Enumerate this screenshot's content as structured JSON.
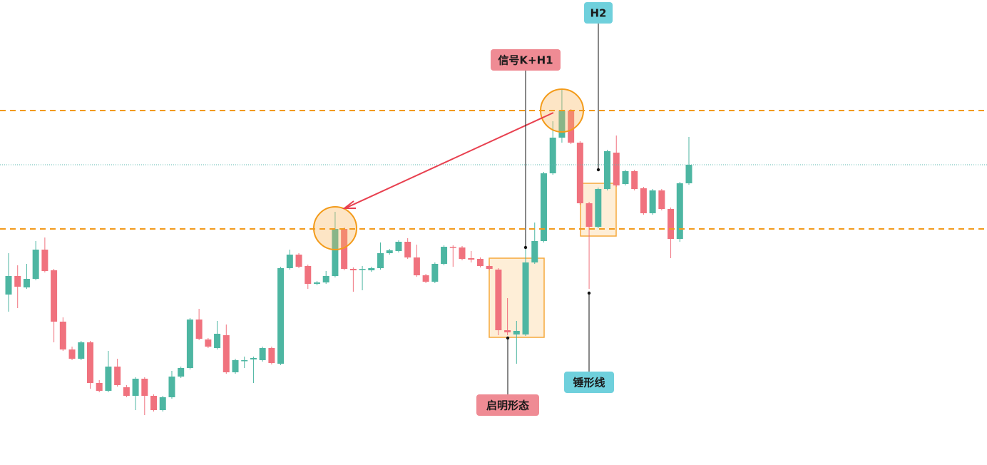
{
  "chart_data": {
    "type": "candlestick",
    "open": [
      239,
      265,
      249,
      261,
      302,
      273,
      201,
      162,
      149,
      172,
      115,
      104,
      138,
      109,
      97,
      121,
      97,
      77,
      95,
      124,
      136,
      204,
      176,
      164,
      182,
      130,
      146,
      148,
      147,
      164,
      142,
      276,
      295,
      279,
      254,
      256,
      265,
      331,
      275,
      274,
      273,
      276,
      297,
      300,
      313,
      291,
      266,
      257,
      282,
      306,
      305,
      290,
      289,
      279,
      274,
      189,
      183,
      183,
      284,
      314,
      409,
      459,
      497,
      452,
      367,
      334,
      387,
      438,
      394,
      412,
      388,
      353,
      385,
      359,
      317,
      395
    ],
    "high": [
      297,
      280,
      282,
      314,
      319,
      275,
      207,
      166,
      174,
      174,
      119,
      160,
      149,
      112,
      123,
      123,
      99,
      97,
      132,
      138,
      206,
      219,
      178,
      202,
      197,
      149,
      152,
      152,
      166,
      166,
      278,
      302,
      297,
      281,
      258,
      272,
      355,
      333,
      277,
      279,
      278,
      312,
      303,
      315,
      318,
      309,
      268,
      284,
      308,
      308,
      307,
      300,
      291,
      281,
      276,
      234,
      202,
      324,
      340,
      411,
      482,
      527,
      499,
      454,
      369,
      389,
      442,
      462,
      414,
      414,
      390,
      387,
      387,
      361,
      397,
      460
    ],
    "low": [
      215,
      220,
      247,
      259,
      270,
      172,
      160,
      147,
      147,
      107,
      102,
      102,
      110,
      95,
      77,
      70,
      75,
      75,
      93,
      122,
      134,
      175,
      164,
      162,
      128,
      128,
      136,
      115,
      145,
      141,
      140,
      274,
      276,
      247,
      252,
      254,
      263,
      273,
      243,
      245,
      271,
      274,
      295,
      298,
      289,
      264,
      255,
      255,
      280,
      278,
      287,
      284,
      277,
      273,
      182,
      182,
      142,
      181,
      282,
      312,
      407,
      452,
      450,
      365,
      247,
      332,
      385,
      390,
      392,
      385,
      351,
      351,
      357,
      290,
      313,
      393
    ],
    "close": [
      265,
      250,
      261,
      302,
      272,
      201,
      162,
      149,
      172,
      115,
      104,
      138,
      112,
      97,
      121,
      97,
      77,
      95,
      124,
      136,
      204,
      177,
      166,
      184,
      130,
      147,
      147,
      150,
      164,
      143,
      276,
      295,
      278,
      254,
      256,
      265,
      331,
      275,
      273,
      275,
      276,
      297,
      301,
      313,
      291,
      266,
      257,
      282,
      306,
      305,
      289,
      288,
      279,
      275,
      189,
      186,
      188,
      284,
      314,
      409,
      459,
      497,
      452,
      367,
      334,
      387,
      440,
      392,
      412,
      387,
      353,
      385,
      359,
      317,
      395,
      421
    ],
    "up_color": "#4db6a2",
    "down_color": "#f0727e",
    "ylim": [
      0,
      652
    ],
    "hlines": [
      {
        "value": 497,
        "color": "#f29a1c",
        "style": "dashed"
      },
      {
        "value": 331,
        "color": "#f29a1c",
        "style": "dashed"
      },
      {
        "value": 421,
        "color": "#5bb8b0",
        "style": "dotted"
      }
    ],
    "annotations": [
      {
        "text": "H2",
        "color": "#6fd0dc"
      },
      {
        "text": "信号K+H1",
        "color": "#ef8b94"
      },
      {
        "text": "启明形态",
        "color": "#ef8b94"
      },
      {
        "text": "锤形线",
        "color": "#6fd0dc"
      }
    ]
  }
}
